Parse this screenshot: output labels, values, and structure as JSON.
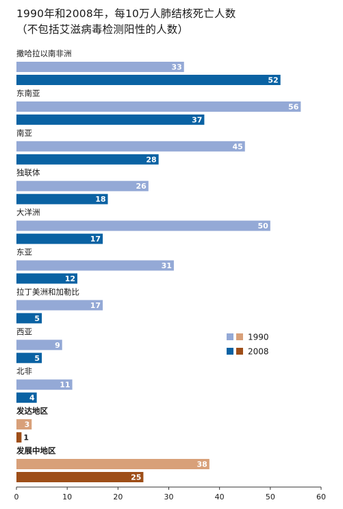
{
  "title_line1": "1990年和2008年，每10万人肺结核死亡人数",
  "title_line2": "（不包括艾滋病毒检测阳性的人数）",
  "chart_data": {
    "type": "bar",
    "orientation": "horizontal",
    "categories": [
      "撒哈拉以南非洲",
      "东南亚",
      "南亚",
      "独联体",
      "大洋洲",
      "东亚",
      "拉丁美洲和加勒比",
      "西亚",
      "北非",
      "发达地区",
      "发展中地区"
    ],
    "bold_categories": [
      "发达地区",
      "发展中地区"
    ],
    "series": [
      {
        "name": "1990",
        "values": [
          33,
          56,
          45,
          26,
          50,
          31,
          17,
          9,
          11,
          3,
          38
        ]
      },
      {
        "name": "2008",
        "values": [
          52,
          37,
          28,
          18,
          17,
          12,
          5,
          5,
          4,
          1,
          25
        ]
      }
    ],
    "xlim": [
      0,
      60
    ],
    "xticks": [
      0,
      10,
      20,
      30,
      40,
      50,
      60
    ],
    "legend_position": "right",
    "colors": {
      "1990_region": "#94a9d6",
      "2008_region": "#0a62a3",
      "1990_aggregate": "#d8a079",
      "2008_aggregate": "#9e4e18"
    },
    "legend": [
      {
        "label": "1990",
        "colors": [
          "#94a9d6",
          "#d8a079"
        ]
      },
      {
        "label": "2008",
        "colors": [
          "#0a62a3",
          "#9e4e18"
        ]
      }
    ]
  }
}
